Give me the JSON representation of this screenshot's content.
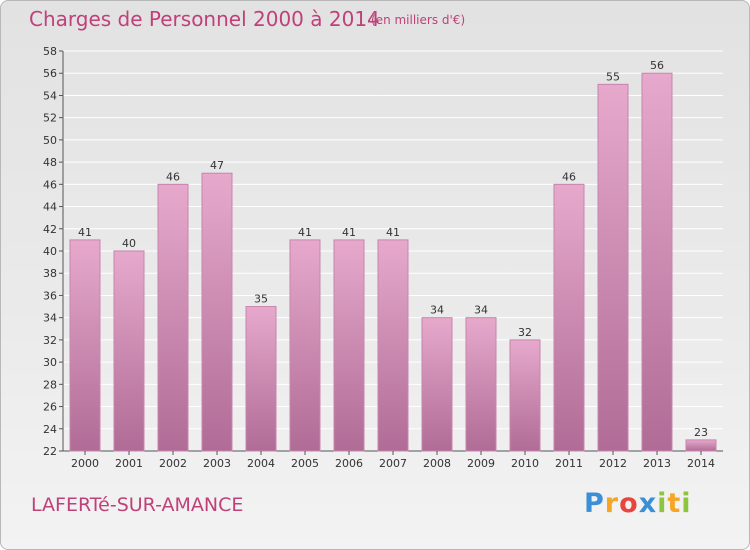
{
  "header": {
    "title": "Charges de Personnel 2000 à 2014",
    "subtitle": "(en milliers d'€)"
  },
  "footer": {
    "place": "LAFERTé-SUR-AMANCE",
    "brand_letters": [
      {
        "ch": "P",
        "color": "#3b8fd6"
      },
      {
        "ch": "r",
        "color": "#f5a623"
      },
      {
        "ch": "o",
        "color": "#e8463c"
      },
      {
        "ch": "x",
        "color": "#3b8fd6"
      },
      {
        "ch": "i",
        "color": "#8cc63f"
      },
      {
        "ch": "t",
        "color": "#f5a623"
      },
      {
        "ch": "i",
        "color": "#8cc63f"
      }
    ]
  },
  "colors": {
    "bar_top": "#e6a9cc",
    "bar_bottom": "#b06c96",
    "bar_edge": "#c885ac",
    "text": "#c0407a",
    "axis": "#555555"
  },
  "chart_data": {
    "type": "bar",
    "title": "Charges de Personnel 2000 à 2014",
    "subtitle": "(en milliers d'€)",
    "categories": [
      "2000",
      "2001",
      "2002",
      "2003",
      "2004",
      "2005",
      "2006",
      "2007",
      "2008",
      "2009",
      "2010",
      "2011",
      "2012",
      "2013",
      "2014"
    ],
    "values": [
      41,
      40,
      46,
      47,
      35,
      41,
      41,
      41,
      34,
      34,
      32,
      46,
      55,
      56,
      23
    ],
    "ylim": [
      22,
      58
    ],
    "yticks": [
      22,
      24,
      26,
      28,
      30,
      32,
      34,
      36,
      38,
      40,
      42,
      44,
      46,
      48,
      50,
      52,
      54,
      56,
      58
    ],
    "grid": true,
    "legend": "none"
  }
}
